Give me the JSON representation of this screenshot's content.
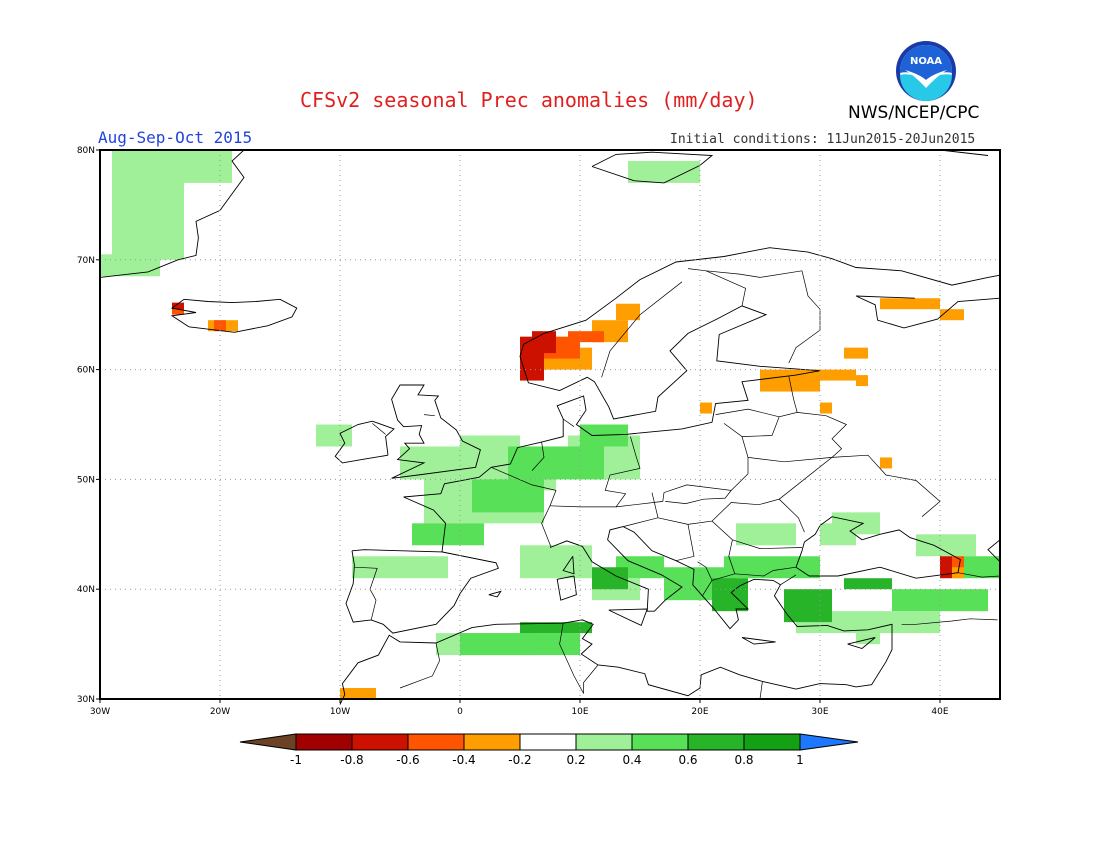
{
  "header": {
    "title": "CFSv2 seasonal Prec anomalies (mm/day)",
    "agency": "NWS/NCEP/CPC",
    "season": "Aug-Sep-Oct 2015",
    "initial_conditions": "Initial conditions: 11Jun2015-20Jun2015",
    "logo_text": "NOAA"
  },
  "map": {
    "lon_range": [
      -30,
      45
    ],
    "lat_range": [
      30,
      80
    ],
    "lon_ticks": [
      {
        "value": -30,
        "label": "30W"
      },
      {
        "value": -20,
        "label": "20W"
      },
      {
        "value": -10,
        "label": "10W"
      },
      {
        "value": 0,
        "label": "0"
      },
      {
        "value": 10,
        "label": "10E"
      },
      {
        "value": 20,
        "label": "20E"
      },
      {
        "value": 30,
        "label": "30E"
      },
      {
        "value": 40,
        "label": "40E"
      }
    ],
    "lat_ticks": [
      {
        "value": 30,
        "label": "30N"
      },
      {
        "value": 40,
        "label": "40N"
      },
      {
        "value": 50,
        "label": "50N"
      },
      {
        "value": 60,
        "label": "60N"
      },
      {
        "value": 70,
        "label": "70N"
      },
      {
        "value": 80,
        "label": "80N"
      }
    ],
    "grid": true
  },
  "anomaly_regions": [
    {
      "class": "0.2 to 0.4",
      "color": "#a0f09a",
      "cells": [
        [
          -29,
          70,
          6,
          10
        ],
        [
          -25,
          77,
          6,
          3
        ],
        [
          -30,
          68.5,
          5,
          2
        ],
        [
          -5,
          50,
          10,
          3
        ],
        [
          -3,
          46,
          10,
          4
        ],
        [
          -9,
          41,
          8,
          2
        ],
        [
          0,
          52,
          5,
          2
        ],
        [
          2,
          49,
          6,
          4
        ],
        [
          -12,
          53,
          3,
          2
        ],
        [
          9,
          50,
          6,
          4
        ],
        [
          5,
          41,
          6,
          3
        ],
        [
          23,
          44,
          5,
          2
        ],
        [
          30,
          44,
          3,
          2
        ],
        [
          38,
          43,
          5,
          2
        ],
        [
          -2,
          34,
          8,
          2
        ],
        [
          28,
          36,
          12,
          2
        ],
        [
          11,
          39,
          4,
          2
        ],
        [
          33,
          35,
          2,
          1
        ],
        [
          14,
          77,
          6,
          2
        ],
        [
          31,
          45,
          4,
          2
        ]
      ]
    },
    {
      "class": "0.4 to 0.6",
      "color": "#58e058",
      "cells": [
        [
          4,
          50,
          8,
          3
        ],
        [
          1,
          47,
          6,
          3
        ],
        [
          10,
          53,
          4,
          2
        ],
        [
          13,
          41,
          4,
          2
        ],
        [
          17,
          39,
          6,
          3
        ],
        [
          22,
          41,
          8,
          2
        ],
        [
          36,
          38,
          8,
          2
        ],
        [
          0,
          34,
          10,
          2
        ],
        [
          41,
          41,
          4,
          2
        ],
        [
          -4,
          44,
          6,
          2
        ]
      ]
    },
    {
      "class": "0.6 to 0.8",
      "color": "#28b428",
      "cells": [
        [
          5,
          36,
          6,
          1
        ],
        [
          11,
          40,
          3,
          2
        ],
        [
          21,
          38,
          3,
          3
        ],
        [
          27,
          37,
          4,
          3
        ],
        [
          32,
          40,
          4,
          1
        ]
      ]
    },
    {
      "class": "-0.2 to -0.4",
      "color": "#ff9e00",
      "cells": [
        [
          -10,
          30,
          3,
          1
        ],
        [
          -21,
          63.5,
          2.5,
          1
        ],
        [
          5,
          60,
          6,
          2
        ],
        [
          11,
          62.5,
          3,
          2
        ],
        [
          13,
          64.5,
          2,
          1.5
        ],
        [
          25,
          58,
          5,
          2
        ],
        [
          29,
          59,
          4,
          1
        ],
        [
          32,
          61,
          2,
          1
        ],
        [
          33,
          58.5,
          1,
          1
        ],
        [
          30,
          56,
          1,
          1
        ],
        [
          35,
          51,
          1,
          1
        ],
        [
          20,
          56,
          1,
          1
        ],
        [
          35,
          65.5,
          5,
          1
        ],
        [
          40,
          64.5,
          2,
          1
        ],
        [
          41,
          41,
          1,
          1
        ]
      ]
    },
    {
      "class": "-0.4 to -0.6",
      "color": "#ff5500",
      "cells": [
        [
          6,
          61,
          4,
          2
        ],
        [
          9,
          62.5,
          3,
          1
        ],
        [
          -20.5,
          63.5,
          1,
          1
        ],
        [
          -24,
          65,
          1,
          1
        ],
        [
          41,
          42,
          1,
          1
        ]
      ]
    },
    {
      "class": "-0.6 to -0.8",
      "color": "#cc1100",
      "cells": [
        [
          5,
          59,
          2,
          4
        ],
        [
          6,
          61.5,
          2,
          2
        ],
        [
          40,
          41,
          1,
          2
        ],
        [
          -24,
          65.5,
          1,
          0.6
        ]
      ]
    }
  ],
  "colorbar": {
    "labels": [
      "-1",
      "-0.8",
      "-0.6",
      "-0.4",
      "-0.2",
      "0.2",
      "0.4",
      "0.6",
      "0.8",
      "1"
    ],
    "colors": [
      "#6b4226",
      "#a00000",
      "#cc1100",
      "#ff5500",
      "#ff9e00",
      "#ffffff",
      "#a0f09a",
      "#58e058",
      "#28b428",
      "#14a014",
      "#1e78ff"
    ]
  }
}
